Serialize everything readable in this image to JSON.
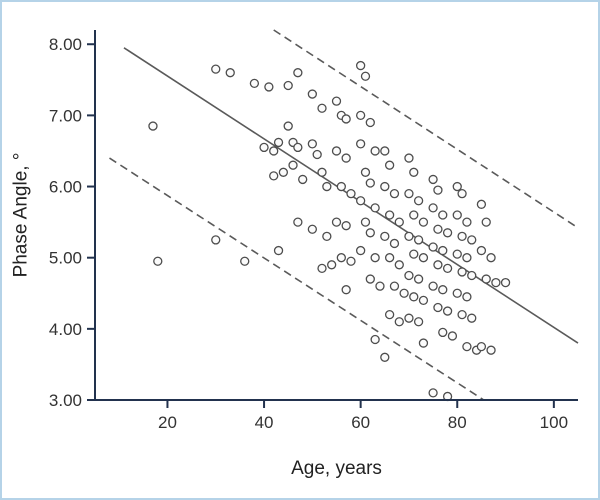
{
  "chart_data": {
    "type": "scatter",
    "title": "",
    "xlabel": "Age, years",
    "ylabel": "Phase Angle, °",
    "xlim": [
      5,
      105
    ],
    "ylim": [
      3.0,
      8.2
    ],
    "x_ticks": [
      20,
      40,
      60,
      80,
      100
    ],
    "x_tick_labels": [
      "20",
      "40",
      "60",
      "80",
      "100"
    ],
    "y_ticks": [
      3,
      4,
      5,
      6,
      7,
      8
    ],
    "y_tick_labels": [
      "3.00",
      "4.00",
      "5.00",
      "6.00",
      "7.00",
      "8.00"
    ],
    "grid": false,
    "legend": "none",
    "axis_color": "#22324e",
    "tick_text_color": "#333333",
    "frame_color": "#b5d3e8",
    "marker": {
      "shape": "circle",
      "fill": "#fbfbfb",
      "stroke": "#4d4d4d",
      "radius": 4
    },
    "lines": [
      {
        "name": "regression-line",
        "style": "solid",
        "color": "#5a5a5a",
        "points": [
          [
            11,
            7.95
          ],
          [
            105,
            3.8
          ]
        ]
      },
      {
        "name": "upper-prediction-limit",
        "style": "dashed",
        "color": "#5a5a5a",
        "points": [
          [
            42,
            8.2
          ],
          [
            105,
            5.42
          ]
        ]
      },
      {
        "name": "lower-prediction-limit",
        "style": "dashed",
        "color": "#5a5a5a",
        "points": [
          [
            8,
            6.4
          ],
          [
            85.5,
            3.0
          ]
        ]
      }
    ],
    "points": [
      [
        17,
        6.85
      ],
      [
        18,
        4.95
      ],
      [
        30,
        7.65
      ],
      [
        33,
        7.6
      ],
      [
        30,
        5.25
      ],
      [
        36,
        4.95
      ],
      [
        38,
        7.45
      ],
      [
        41,
        7.4
      ],
      [
        40,
        6.55
      ],
      [
        42,
        6.5
      ],
      [
        43,
        6.62
      ],
      [
        42,
        6.15
      ],
      [
        44,
        6.2
      ],
      [
        43,
        5.1
      ],
      [
        45,
        7.42
      ],
      [
        47,
        7.6
      ],
      [
        45,
        6.85
      ],
      [
        46,
        6.62
      ],
      [
        47,
        6.55
      ],
      [
        46,
        6.3
      ],
      [
        48,
        6.1
      ],
      [
        47,
        5.5
      ],
      [
        50,
        7.3
      ],
      [
        52,
        7.1
      ],
      [
        50,
        6.6
      ],
      [
        51,
        6.45
      ],
      [
        52,
        6.2
      ],
      [
        53,
        6.0
      ],
      [
        50,
        5.4
      ],
      [
        53,
        5.3
      ],
      [
        52,
        4.85
      ],
      [
        54,
        4.9
      ],
      [
        55,
        7.2
      ],
      [
        56,
        7.0
      ],
      [
        57,
        6.95
      ],
      [
        55,
        6.5
      ],
      [
        57,
        6.4
      ],
      [
        56,
        6.0
      ],
      [
        58,
        5.9
      ],
      [
        55,
        5.5
      ],
      [
        57,
        5.45
      ],
      [
        56,
        5.0
      ],
      [
        58,
        4.95
      ],
      [
        57,
        4.55
      ],
      [
        60,
        7.7
      ],
      [
        61,
        7.55
      ],
      [
        60,
        7.0
      ],
      [
        62,
        6.9
      ],
      [
        60,
        6.6
      ],
      [
        63,
        6.5
      ],
      [
        61,
        6.2
      ],
      [
        62,
        6.05
      ],
      [
        60,
        5.8
      ],
      [
        63,
        5.7
      ],
      [
        61,
        5.5
      ],
      [
        62,
        5.35
      ],
      [
        60,
        5.1
      ],
      [
        63,
        5.0
      ],
      [
        62,
        4.7
      ],
      [
        64,
        4.6
      ],
      [
        63,
        3.85
      ],
      [
        65,
        6.5
      ],
      [
        66,
        6.3
      ],
      [
        65,
        6.0
      ],
      [
        67,
        5.9
      ],
      [
        66,
        5.6
      ],
      [
        68,
        5.5
      ],
      [
        65,
        5.3
      ],
      [
        67,
        5.2
      ],
      [
        66,
        5.0
      ],
      [
        68,
        4.9
      ],
      [
        67,
        4.6
      ],
      [
        69,
        4.5
      ],
      [
        66,
        4.2
      ],
      [
        68,
        4.1
      ],
      [
        65,
        3.6
      ],
      [
        70,
        6.4
      ],
      [
        71,
        6.2
      ],
      [
        70,
        5.9
      ],
      [
        72,
        5.8
      ],
      [
        71,
        5.6
      ],
      [
        73,
        5.5
      ],
      [
        70,
        5.3
      ],
      [
        72,
        5.25
      ],
      [
        71,
        5.05
      ],
      [
        73,
        5.0
      ],
      [
        70,
        4.75
      ],
      [
        72,
        4.7
      ],
      [
        71,
        4.45
      ],
      [
        73,
        4.4
      ],
      [
        70,
        4.15
      ],
      [
        72,
        4.1
      ],
      [
        73,
        3.8
      ],
      [
        75,
        6.1
      ],
      [
        76,
        5.95
      ],
      [
        75,
        5.7
      ],
      [
        77,
        5.6
      ],
      [
        76,
        5.4
      ],
      [
        78,
        5.35
      ],
      [
        75,
        5.15
      ],
      [
        77,
        5.1
      ],
      [
        76,
        4.9
      ],
      [
        78,
        4.85
      ],
      [
        75,
        4.6
      ],
      [
        77,
        4.55
      ],
      [
        76,
        4.3
      ],
      [
        78,
        4.25
      ],
      [
        77,
        3.95
      ],
      [
        79,
        3.9
      ],
      [
        75,
        3.1
      ],
      [
        78,
        3.05
      ],
      [
        80,
        6.0
      ],
      [
        81,
        5.9
      ],
      [
        80,
        5.6
      ],
      [
        82,
        5.5
      ],
      [
        81,
        5.3
      ],
      [
        83,
        5.25
      ],
      [
        80,
        5.05
      ],
      [
        82,
        5.0
      ],
      [
        81,
        4.8
      ],
      [
        83,
        4.75
      ],
      [
        80,
        4.5
      ],
      [
        82,
        4.45
      ],
      [
        81,
        4.2
      ],
      [
        83,
        4.15
      ],
      [
        82,
        3.75
      ],
      [
        84,
        3.7
      ],
      [
        85,
        5.75
      ],
      [
        86,
        5.5
      ],
      [
        85,
        5.1
      ],
      [
        87,
        5.0
      ],
      [
        86,
        4.7
      ],
      [
        88,
        4.65
      ],
      [
        85,
        3.75
      ],
      [
        87,
        3.7
      ],
      [
        90,
        4.65
      ]
    ]
  }
}
